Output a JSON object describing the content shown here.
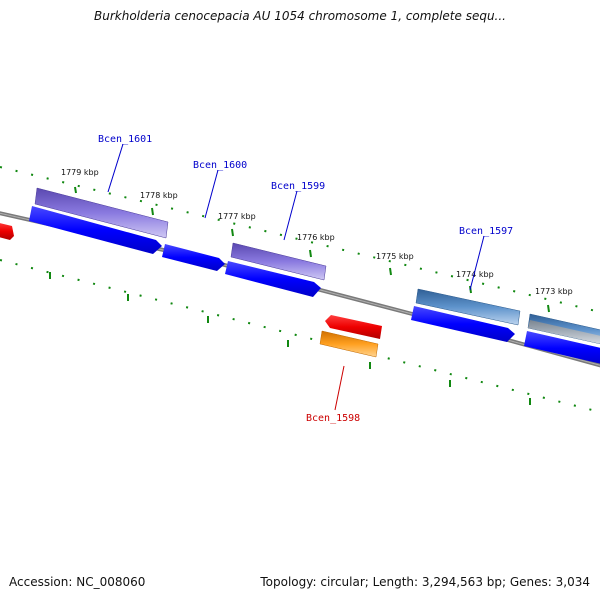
{
  "title": "Burkholderia cenocepacia AU 1054 chromosome 1, complete sequ...",
  "footer": {
    "accession": "Accession: NC_008060",
    "topology": "Topology: circular; Length: 3,294,563 bp; Genes: 3,034"
  },
  "kbp_labels": [
    "1779 kbp",
    "1778 kbp",
    "1777 kbp",
    "1776 kbp",
    "1775 kbp",
    "1774 kbp",
    "1773 kbp"
  ],
  "gene_labels": [
    "Bcen_1601",
    "Bcen_1600",
    "Bcen_1599",
    "Bcen_1598",
    "Bcen_1597"
  ],
  "colors": {
    "plus_strand_label": "#0000cc",
    "minus_strand_label": "#cc0000",
    "tick": "#118811",
    "backbone": "#808080",
    "cds_blue": "#0000ff",
    "gene_purple": "#7766cc",
    "gene_steelblue": "#4a7fb8",
    "gene_red": "#ee0000",
    "gene_orange": "#ff9900"
  }
}
